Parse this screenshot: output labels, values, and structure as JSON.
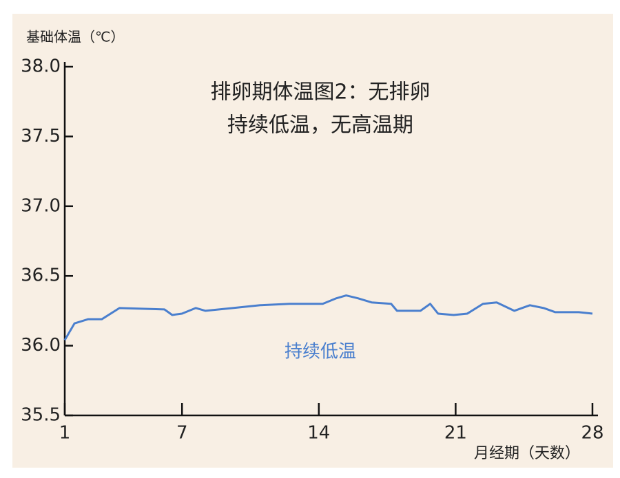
{
  "chart_data": {
    "type": "line",
    "title_lines": [
      "排卵期体温图2：无排卵",
      "持续低温，无高温期"
    ],
    "y_label": "基础体温（℃）",
    "x_label": "月经期（天数）",
    "annotation": "持续低温",
    "x": [
      1,
      1.5,
      2.2,
      2.9,
      3.8,
      6.1,
      6.5,
      7,
      7.7,
      8.2,
      9.6,
      11,
      12.5,
      14.2,
      14.9,
      15.4,
      16,
      16.7,
      17.7,
      18,
      19.2,
      19.7,
      20.1,
      20.9,
      21.6,
      22.4,
      23.1,
      24,
      24.8,
      25.5,
      26.1,
      27.3,
      28
    ],
    "series": [
      {
        "color": "#4a7fce",
        "values": [
          36.04,
          36.16,
          36.19,
          36.19,
          36.27,
          36.26,
          36.22,
          36.23,
          36.27,
          36.25,
          36.27,
          36.29,
          36.3,
          36.3,
          36.34,
          36.36,
          36.34,
          36.31,
          36.3,
          36.25,
          36.25,
          36.3,
          36.23,
          36.22,
          36.23,
          36.3,
          36.31,
          36.25,
          36.29,
          36.27,
          36.24,
          36.24,
          36.23
        ]
      }
    ],
    "xlim": [
      1,
      28
    ],
    "xticks": [
      1,
      7,
      14,
      21,
      28
    ],
    "ylim": [
      35.5,
      38
    ],
    "yticks": [
      {
        "value": 38,
        "label": "38.0"
      },
      37.5,
      {
        "value": 37,
        "label": "37.0"
      },
      36.5,
      {
        "value": 36,
        "label": "36.0"
      },
      35.5
    ]
  }
}
